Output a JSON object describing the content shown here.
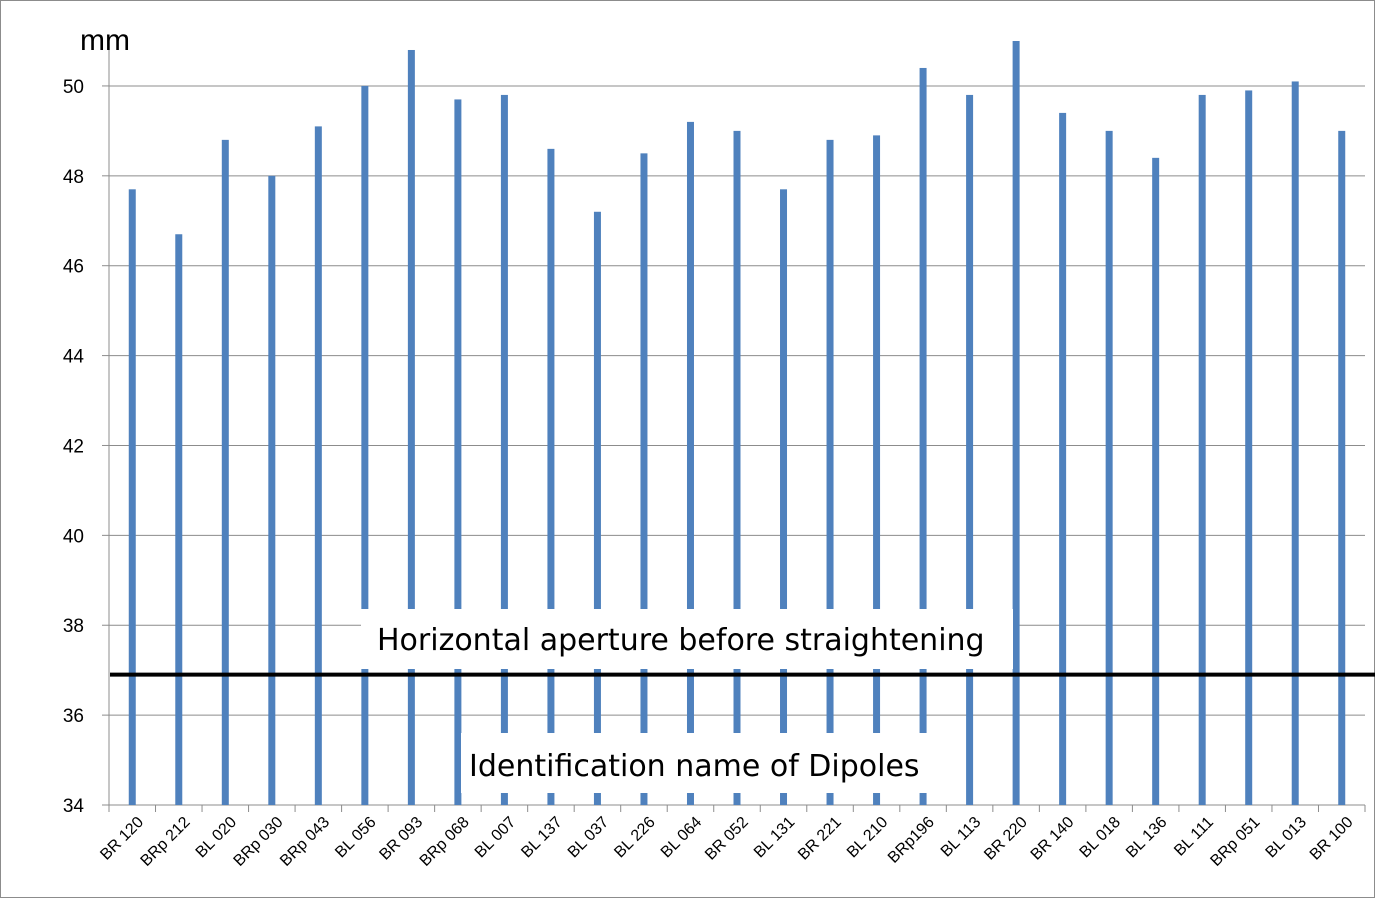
{
  "chart_data": {
    "type": "bar",
    "title": "",
    "ylabel": "mm",
    "xlabel": "Identification name of Dipoles",
    "ylim": [
      34,
      51
    ],
    "yticks": [
      34,
      36,
      38,
      40,
      42,
      44,
      46,
      48,
      50
    ],
    "grid": true,
    "bar_color": "#4f81bd",
    "categories": [
      "BR 120",
      "BRp 212",
      "BL 020",
      "BRp 030",
      "BRp 043",
      "BL 056",
      "BR 093",
      "BRp 068",
      "BL 007",
      "BL 137",
      "BL 037",
      "BL 226",
      "BL 064",
      "BR 052",
      "BL 131",
      "BR 221",
      "BL 210",
      "BRp196",
      "BL 113",
      "BR 220",
      "BR 140",
      "BL 018",
      "BL 136",
      "BL 111",
      "BRp 051",
      "BL 013",
      "BR 100"
    ],
    "values": [
      47.7,
      46.7,
      48.8,
      48.0,
      49.1,
      50.0,
      50.8,
      49.7,
      49.8,
      48.6,
      47.2,
      48.5,
      49.2,
      49.0,
      47.7,
      48.8,
      48.9,
      50.4,
      49.8,
      51.0,
      49.4,
      49.0,
      48.4,
      49.8,
      49.9,
      50.1,
      49.0
    ],
    "reference_line": {
      "value": 36.9,
      "label": "Horizontal aperture before straightening",
      "color": "#000000"
    }
  }
}
